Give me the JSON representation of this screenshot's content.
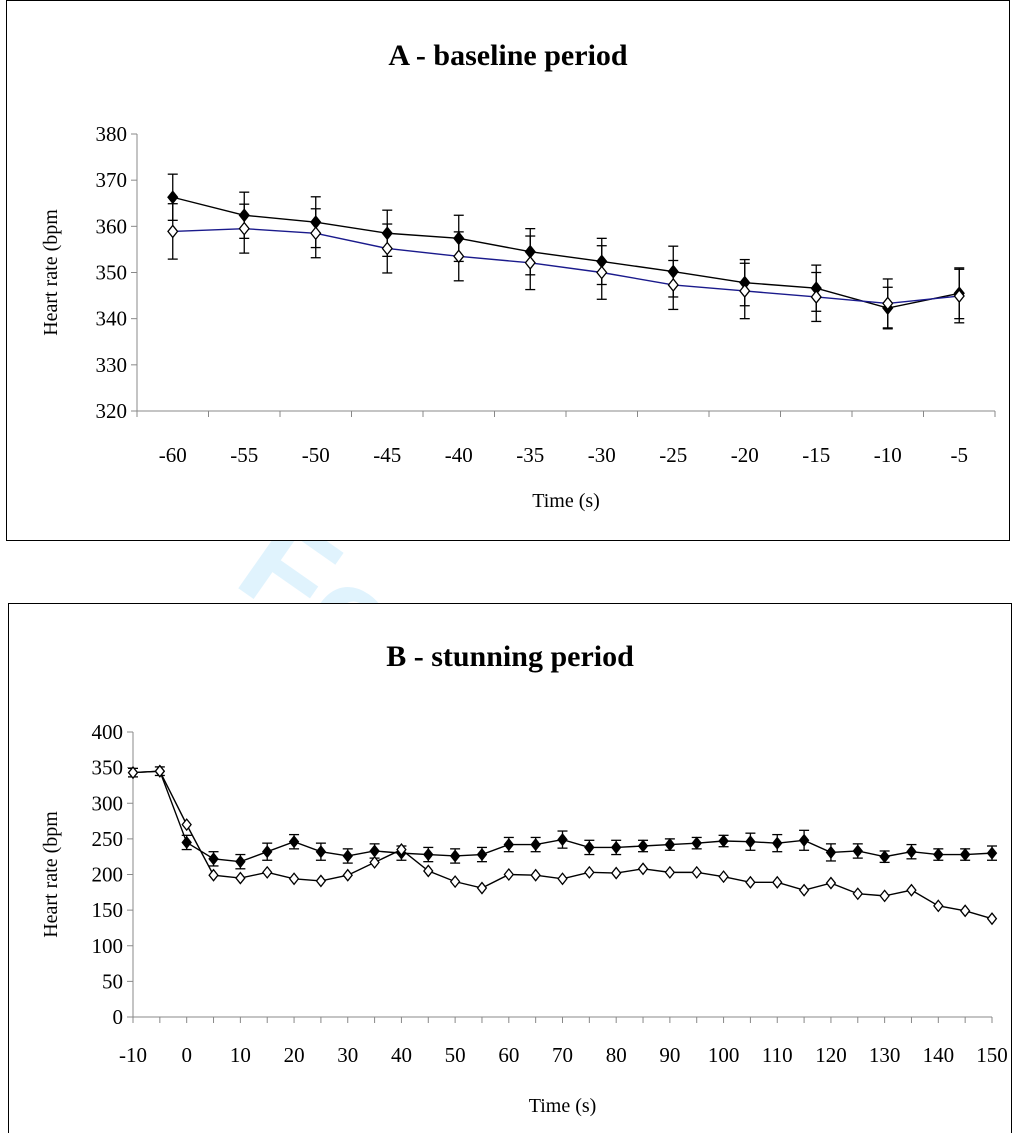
{
  "chart_data": [
    {
      "type": "line",
      "title": "A - baseline period",
      "xlabel": "Time (s)",
      "ylabel": "Heart rate (bpm",
      "x": [
        -60,
        -55,
        -50,
        -45,
        -40,
        -35,
        -30,
        -25,
        -20,
        -15,
        -10,
        -5
      ],
      "x_ticks": [
        "-60",
        "-55",
        "-50",
        "-45",
        "-40",
        "-35",
        "-30",
        "-25",
        "-20",
        "-15",
        "-10",
        "-5"
      ],
      "y_ticks": [
        "320",
        "330",
        "340",
        "350",
        "360",
        "370",
        "380"
      ],
      "ylim": [
        320,
        380
      ],
      "grid": false,
      "series": [
        {
          "marker": "filled-diamond",
          "line_color": "#000000",
          "values": [
            366.3,
            362.4,
            360.9,
            358.5,
            357.4,
            354.5,
            352.4,
            350.2,
            347.8,
            346.6,
            342.3,
            345.5
          ],
          "error": [
            5.0,
            5.0,
            5.5,
            5.0,
            5.0,
            5.0,
            5.0,
            5.5,
            5.0,
            5.0,
            4.5,
            5.5
          ]
        },
        {
          "marker": "open-diamond",
          "line_color": "#1a1a8c",
          "values": [
            358.9,
            359.5,
            358.5,
            355.2,
            353.5,
            352.1,
            350.0,
            347.3,
            346.0,
            344.7,
            343.3,
            344.9
          ],
          "error": [
            6.0,
            5.3,
            5.3,
            5.3,
            5.3,
            5.8,
            5.8,
            5.3,
            6.0,
            5.3,
            5.3,
            5.8
          ]
        }
      ]
    },
    {
      "type": "line",
      "title": "B - stunning period",
      "xlabel": "Time (s)",
      "ylabel": "Heart rate (bpm",
      "x": [
        -10,
        -5,
        0,
        5,
        10,
        15,
        20,
        25,
        30,
        35,
        40,
        45,
        50,
        55,
        60,
        65,
        70,
        75,
        80,
        85,
        90,
        95,
        100,
        105,
        110,
        115,
        120,
        125,
        130,
        135,
        140,
        145,
        150
      ],
      "x_ticks": [
        "-10",
        "0",
        "10",
        "20",
        "30",
        "40",
        "50",
        "60",
        "70",
        "80",
        "90",
        "100",
        "110",
        "120",
        "130",
        "140",
        "150"
      ],
      "y_ticks": [
        "0",
        "50",
        "100",
        "150",
        "200",
        "250",
        "300",
        "350",
        "400"
      ],
      "ylim": [
        0,
        400
      ],
      "grid": false,
      "series": [
        {
          "marker": "filled-diamond",
          "line_color": "#000000",
          "values": [
            343,
            345,
            245,
            222,
            218,
            232,
            246,
            232,
            226,
            233,
            230,
            228,
            226,
            228,
            242,
            242,
            249,
            238,
            238,
            240,
            242,
            244,
            247,
            246,
            244,
            248,
            231,
            233,
            225,
            232,
            228,
            228,
            230
          ],
          "error": [
            6,
            6,
            10,
            10,
            10,
            12,
            10,
            12,
            10,
            10,
            10,
            10,
            10,
            10,
            10,
            10,
            12,
            10,
            10,
            8,
            8,
            8,
            8,
            12,
            12,
            14,
            12,
            10,
            8,
            10,
            8,
            8,
            10
          ]
        },
        {
          "marker": "open-diamond",
          "line_color": "#000000",
          "values": [
            343,
            345,
            270,
            199,
            195,
            203,
            194,
            191,
            199,
            217,
            235,
            205,
            190,
            181,
            200,
            199,
            194,
            203,
            202,
            208,
            203,
            203,
            197,
            189,
            189,
            178,
            188,
            173,
            170,
            178,
            156,
            149,
            138
          ]
        }
      ]
    }
  ]
}
